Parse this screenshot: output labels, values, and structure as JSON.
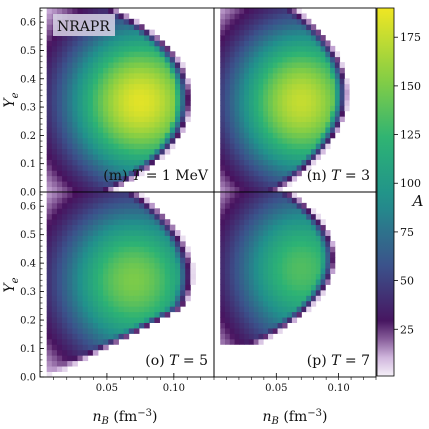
{
  "chart_data": {
    "type": "heatmap",
    "model_label": "NRAPR",
    "panels": [
      {
        "id": "m",
        "label_prefix": "(m) ",
        "label_var": "T",
        "label_value": " = 1 MeV",
        "x_ticks": [],
        "y_ticks": [
          "0.0",
          "0.1",
          "0.2",
          "0.3",
          "0.4",
          "0.5",
          "0.6"
        ],
        "peak": {
          "x": 0.075,
          "y": 0.32,
          "A": 185
        },
        "x_range": [
          0.005,
          0.12
        ],
        "y_range": [
          0.0,
          0.65
        ]
      },
      {
        "id": "n",
        "label_prefix": "(n) ",
        "label_var": "T",
        "label_value": " = 3",
        "x_ticks": [],
        "y_ticks": [],
        "peak": {
          "x": 0.07,
          "y": 0.32,
          "A": 175
        },
        "x_range": [
          0.005,
          0.12
        ],
        "y_range": [
          0.0,
          0.65
        ]
      },
      {
        "id": "o",
        "label_prefix": "(o) ",
        "label_var": "T",
        "label_value": " = 5",
        "x_ticks": [
          "0.05",
          "0.10"
        ],
        "y_ticks": [
          "0.0",
          "0.1",
          "0.2",
          "0.3",
          "0.4",
          "0.5",
          "0.6"
        ],
        "peak": {
          "x": 0.07,
          "y": 0.34,
          "A": 150
        },
        "x_range": [
          0.005,
          0.12
        ],
        "y_range": [
          0.0,
          0.65
        ]
      },
      {
        "id": "p",
        "label_prefix": "(p) ",
        "label_var": "T",
        "label_value": " = 7",
        "x_ticks": [
          "0.05",
          "0.10"
        ],
        "y_ticks": [],
        "peak": {
          "x": 0.07,
          "y": 0.38,
          "A": 135
        },
        "x_range": [
          0.005,
          0.12
        ],
        "y_range": [
          0.0,
          0.65
        ]
      }
    ],
    "x_axis": {
      "range": [
        0.0,
        0.13
      ],
      "label_var": "n",
      "label_sub": "B",
      "label_units": " (fm",
      "label_exp": "−3",
      "label_close": ")"
    },
    "y_axis": {
      "range": [
        0.0,
        0.65
      ],
      "label_var": "Y",
      "label_sub": "e"
    },
    "colorbar": {
      "label": "A",
      "range": [
        1,
        190
      ],
      "ticks": [
        "25",
        "50",
        "75",
        "100",
        "125",
        "150",
        "175"
      ],
      "tick_values": [
        25,
        50,
        75,
        100,
        125,
        150,
        175
      ],
      "colormap": "viridis_r"
    }
  }
}
